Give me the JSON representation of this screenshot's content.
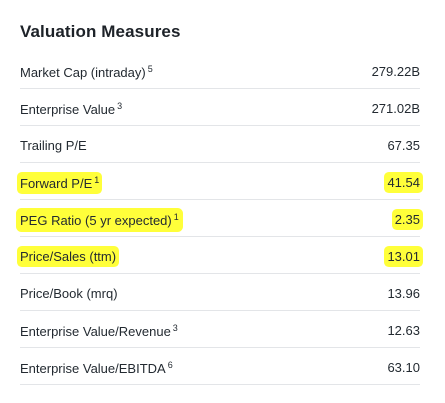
{
  "title": "Valuation Measures",
  "highlight_color": "#ffff3a",
  "rows": [
    {
      "label": "Market Cap (intraday)",
      "sup": "5",
      "value": "279.22B"
    },
    {
      "label": "Enterprise Value",
      "sup": "3",
      "value": "271.02B"
    },
    {
      "label": "Trailing P/E",
      "sup": "",
      "value": "67.35"
    },
    {
      "label": "Forward P/E",
      "sup": "1",
      "value": "41.54"
    },
    {
      "label": "PEG Ratio (5 yr expected)",
      "sup": "1",
      "value": "2.35"
    },
    {
      "label": "Price/Sales (ttm)",
      "sup": "",
      "value": "13.01"
    },
    {
      "label": "Price/Book (mrq)",
      "sup": "",
      "value": "13.96"
    },
    {
      "label": "Enterprise Value/Revenue",
      "sup": "3",
      "value": "12.63"
    },
    {
      "label": "Enterprise Value/EBITDA",
      "sup": "6",
      "value": "63.10"
    }
  ]
}
